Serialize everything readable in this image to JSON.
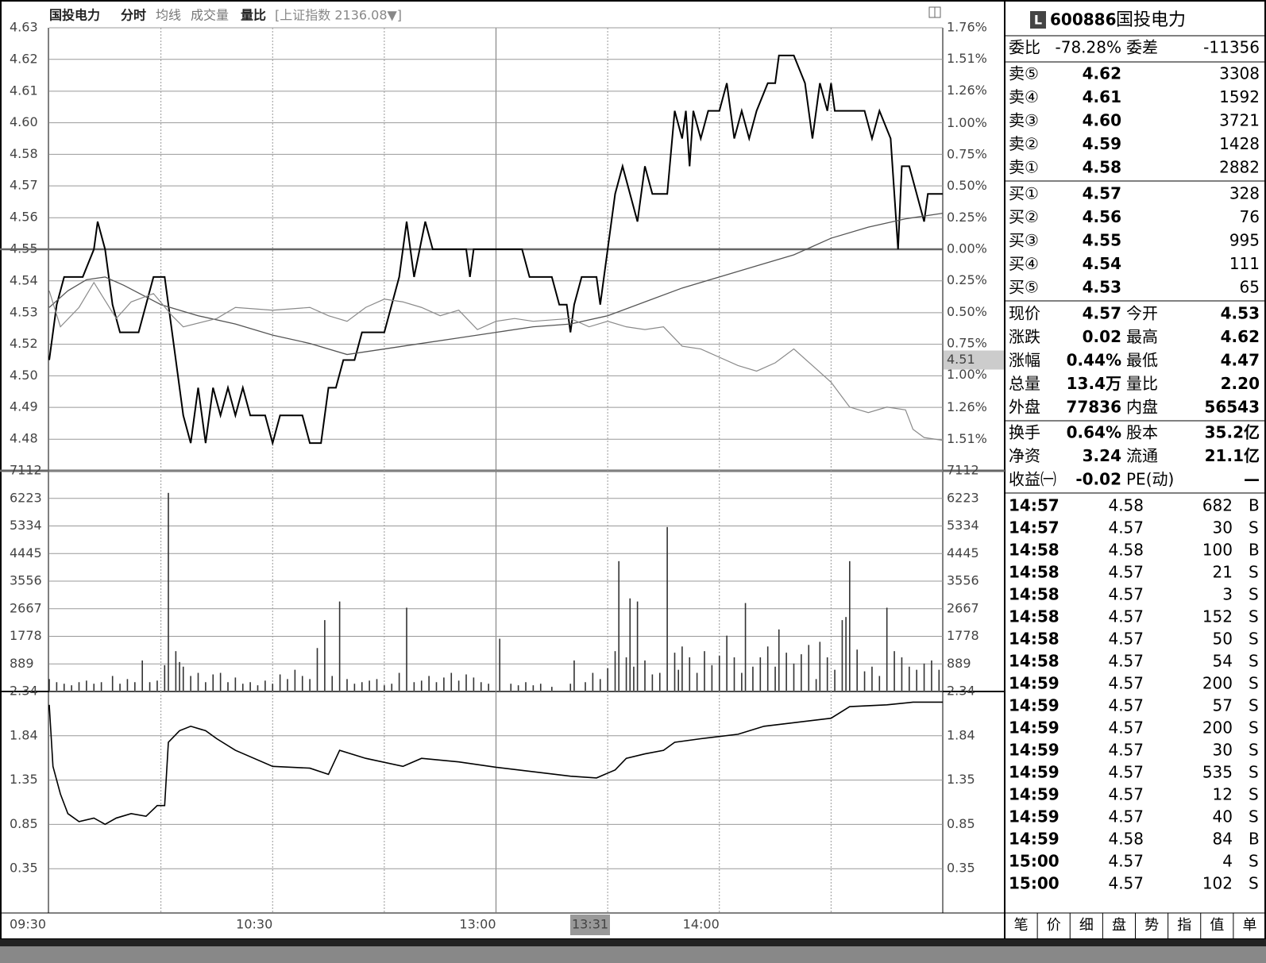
{
  "header": {
    "stock_name": "国投电力",
    "tabs": [
      "分时",
      "均线",
      "成交量",
      "量比"
    ],
    "index_info": "[上证指数 2136.08▼]"
  },
  "cursor": {
    "time": "13:31",
    "price": 4.51
  },
  "chart_data": [
    {
      "type": "line",
      "xlim": [
        0,
        240
      ],
      "ylim": [
        4.47,
        4.63
      ],
      "y2lim": [
        -1.76,
        1.76
      ],
      "yticks": [
        4.63,
        {
          "value": 4.6186,
          "label": "4.62"
        },
        {
          "value": 4.6071,
          "label": "4.61"
        },
        {
          "value": 4.5957,
          "label": "4.60"
        },
        {
          "value": 4.5843,
          "label": "4.58"
        },
        {
          "value": 4.5729,
          "label": "4.57"
        },
        {
          "value": 4.5614,
          "label": "4.56"
        },
        4.55,
        {
          "value": 4.5386,
          "label": "4.54"
        },
        {
          "value": 4.5271,
          "label": "4.53"
        },
        {
          "value": 4.5157,
          "label": "4.52"
        },
        {
          "value": 4.5043,
          "label": "4.50"
        },
        {
          "value": 4.4929,
          "label": "4.49"
        },
        {
          "value": 4.4814,
          "label": "4.48"
        }
      ],
      "y2ticks": [
        {
          "value": 1.76,
          "label": "1.76%"
        },
        {
          "value": 1.51,
          "label": "1.51%"
        },
        {
          "value": 1.26,
          "label": "1.26%"
        },
        {
          "value": 1.0,
          "label": "1.00%"
        },
        {
          "value": 0.75,
          "label": "0.75%"
        },
        {
          "value": 0.5,
          "label": "0.50%"
        },
        {
          "value": 0.25,
          "label": "0.25%"
        },
        {
          "value": 0,
          "label": "0.00%"
        },
        {
          "value": -0.25,
          "label": "0.25%"
        },
        {
          "value": -0.5,
          "label": "0.50%"
        },
        {
          "value": -0.75,
          "label": "0.75%"
        },
        {
          "value": -1.0,
          "label": "1.00%"
        },
        {
          "value": -1.26,
          "label": "1.26%"
        },
        {
          "value": -1.51,
          "label": "1.51%"
        }
      ],
      "x_grid": [
        30,
        60,
        90,
        120,
        150,
        180,
        210
      ],
      "series": [
        {
          "color": "#000000",
          "width": 2,
          "x": [
            0,
            2,
            4,
            7,
            9,
            12,
            13,
            15,
            17,
            19,
            24,
            26,
            28,
            31,
            33,
            36,
            38,
            40,
            42,
            44,
            46,
            48,
            50,
            52,
            54,
            58,
            60,
            62,
            68,
            70,
            73,
            75,
            77,
            79,
            82,
            84,
            90,
            92,
            94,
            96,
            98,
            101,
            103,
            112,
            113,
            114,
            127,
            129,
            135,
            137,
            139,
            140,
            141,
            143,
            147,
            148,
            150,
            152,
            154,
            156,
            158,
            160,
            162,
            166,
            168,
            170,
            171,
            172,
            173,
            175,
            177,
            180,
            182,
            184,
            186,
            188,
            190,
            193,
            195,
            196,
            198,
            200,
            203,
            205,
            207,
            209,
            210,
            211,
            219,
            221,
            223,
            226,
            228,
            229,
            231,
            233,
            235,
            236,
            240
          ],
          "values": [
            4.51,
            4.53,
            4.54,
            4.54,
            4.54,
            4.55,
            4.56,
            4.55,
            4.53,
            4.52,
            4.52,
            4.53,
            4.54,
            4.54,
            4.52,
            4.49,
            4.48,
            4.5,
            4.48,
            4.5,
            4.49,
            4.5,
            4.49,
            4.5,
            4.49,
            4.49,
            4.48,
            4.49,
            4.49,
            4.48,
            4.48,
            4.5,
            4.5,
            4.51,
            4.51,
            4.52,
            4.52,
            4.53,
            4.54,
            4.56,
            4.54,
            4.56,
            4.55,
            4.55,
            4.54,
            4.55,
            4.55,
            4.54,
            4.54,
            4.53,
            4.53,
            4.52,
            4.53,
            4.54,
            4.54,
            4.53,
            4.55,
            4.57,
            4.58,
            4.57,
            4.56,
            4.58,
            4.57,
            4.57,
            4.6,
            4.59,
            4.6,
            4.58,
            4.6,
            4.59,
            4.6,
            4.6,
            4.61,
            4.59,
            4.6,
            4.59,
            4.6,
            4.61,
            4.61,
            4.62,
            4.62,
            4.62,
            4.61,
            4.59,
            4.61,
            4.6,
            4.61,
            4.6,
            4.6,
            4.59,
            4.6,
            4.59,
            4.55,
            4.58,
            4.58,
            4.57,
            4.56,
            4.57,
            4.57
          ]
        },
        {
          "color": "#555555",
          "width": 1.3,
          "x": [
            0,
            5,
            10,
            15,
            20,
            30,
            40,
            50,
            60,
            70,
            80,
            90,
            100,
            110,
            120,
            130,
            140,
            150,
            160,
            170,
            180,
            190,
            200,
            210,
            220,
            230,
            240
          ],
          "values": [
            4.529,
            4.535,
            4.539,
            4.54,
            4.537,
            4.53,
            4.526,
            4.523,
            4.519,
            4.516,
            4.512,
            4.514,
            4.516,
            4.518,
            4.52,
            4.522,
            4.523,
            4.526,
            4.531,
            4.536,
            4.54,
            4.544,
            4.548,
            4.554,
            4.558,
            4.561,
            4.563
          ]
        },
        {
          "color": "#8a8a8a",
          "width": 1.2,
          "x": [
            0,
            3,
            8,
            12,
            18,
            22,
            28,
            33,
            36,
            45,
            50,
            60,
            70,
            75,
            80,
            85,
            90,
            95,
            100,
            105,
            110,
            115,
            120,
            125,
            130,
            140,
            145,
            150,
            155,
            160,
            165,
            170,
            175,
            180,
            185,
            190,
            195,
            200,
            205,
            210,
            215,
            220,
            225,
            230,
            232,
            235,
            240
          ],
          "values": [
            4.535,
            4.522,
            4.529,
            4.538,
            4.525,
            4.531,
            4.534,
            4.526,
            4.522,
            4.525,
            4.529,
            4.528,
            4.529,
            4.526,
            4.524,
            4.529,
            4.532,
            4.531,
            4.529,
            4.526,
            4.528,
            4.521,
            4.524,
            4.525,
            4.524,
            4.525,
            4.522,
            4.524,
            4.522,
            4.521,
            4.522,
            4.515,
            4.514,
            4.511,
            4.508,
            4.506,
            4.509,
            4.514,
            4.508,
            4.502,
            4.493,
            4.491,
            4.493,
            4.492,
            4.485,
            4.482,
            4.481
          ]
        }
      ]
    },
    {
      "type": "bar",
      "xlim": [
        0,
        240
      ],
      "ylim": [
        0,
        7112
      ],
      "yticks": [
        7112,
        6223,
        5334,
        4445,
        3556,
        2667,
        1778,
        889
      ],
      "color": "#333333",
      "x": [
        0,
        2,
        4,
        6,
        8,
        10,
        12,
        14,
        17,
        19,
        21,
        23,
        25,
        27,
        29,
        31,
        32,
        34,
        35,
        36,
        38,
        40,
        42,
        44,
        46,
        48,
        50,
        52,
        54,
        56,
        58,
        60,
        62,
        64,
        66,
        68,
        70,
        72,
        74,
        76,
        78,
        80,
        82,
        84,
        86,
        88,
        90,
        92,
        94,
        96,
        98,
        100,
        102,
        104,
        106,
        108,
        110,
        112,
        114,
        116,
        118,
        121,
        124,
        126,
        128,
        130,
        132,
        135,
        140,
        141,
        144,
        146,
        148,
        150,
        152,
        153,
        155,
        156,
        157,
        158,
        160,
        162,
        164,
        166,
        168,
        169,
        170,
        172,
        174,
        176,
        178,
        180,
        182,
        184,
        186,
        187,
        189,
        191,
        193,
        195,
        196,
        198,
        200,
        202,
        204,
        206,
        207,
        209,
        211,
        213,
        214,
        215,
        217,
        219,
        221,
        223,
        225,
        227,
        229,
        231,
        233,
        235,
        237,
        239
      ],
      "values": [
        400,
        300,
        250,
        200,
        300,
        350,
        250,
        300,
        500,
        250,
        400,
        300,
        1000,
        300,
        350,
        850,
        6400,
        1300,
        950,
        800,
        500,
        600,
        300,
        550,
        600,
        300,
        450,
        250,
        300,
        200,
        350,
        250,
        550,
        400,
        700,
        500,
        400,
        1400,
        2300,
        500,
        2900,
        400,
        250,
        300,
        350,
        400,
        200,
        250,
        600,
        2700,
        300,
        350,
        500,
        300,
        450,
        600,
        350,
        550,
        450,
        300,
        250,
        1700,
        250,
        200,
        300,
        200,
        250,
        150,
        250,
        1000,
        300,
        600,
        400,
        750,
        1300,
        4200,
        1100,
        3000,
        800,
        2900,
        1000,
        550,
        600,
        5300,
        1250,
        700,
        1450,
        1100,
        600,
        1300,
        850,
        1150,
        1800,
        1100,
        600,
        2850,
        800,
        1100,
        1450,
        800,
        2000,
        1250,
        900,
        1200,
        1500,
        400,
        1600,
        1100,
        700,
        2300,
        2400,
        4200,
        1350,
        650,
        800,
        500,
        2700,
        1300,
        1100,
        800,
        700,
        900,
        1000,
        700
      ]
    },
    {
      "type": "line",
      "xlim": [
        0,
        240
      ],
      "ylim": [
        -0.145,
        2.34
      ],
      "yticks": [
        2.34,
        {
          "value": 1.843,
          "label": "1.84"
        },
        {
          "value": 1.346,
          "label": "1.35"
        },
        {
          "value": 0.849,
          "label": "0.85"
        },
        {
          "value": 0.352,
          "label": "0.35"
        }
      ],
      "xticks": [
        {
          "value": 0,
          "label": "09:30"
        },
        {
          "value": 60,
          "label": "10:30"
        },
        {
          "value": 120,
          "label": "13:00"
        },
        {
          "value": 180,
          "label": "14:00"
        }
      ],
      "series": [
        {
          "color": "#000000",
          "width": 1.6,
          "x": [
            0,
            1,
            3,
            5,
            8,
            12,
            15,
            18,
            22,
            26,
            29,
            31,
            32,
            35,
            38,
            42,
            45,
            50,
            60,
            70,
            75,
            78,
            85,
            95,
            100,
            110,
            120,
            130,
            140,
            147,
            152,
            155,
            160,
            165,
            168,
            175,
            185,
            192,
            200,
            210,
            215,
            225,
            232,
            240
          ],
          "values": [
            2.19,
            1.5,
            1.19,
            0.97,
            0.88,
            0.92,
            0.85,
            0.92,
            0.97,
            0.94,
            1.06,
            1.06,
            1.77,
            1.9,
            1.95,
            1.9,
            1.81,
            1.68,
            1.5,
            1.48,
            1.41,
            1.68,
            1.59,
            1.5,
            1.59,
            1.55,
            1.49,
            1.44,
            1.39,
            1.37,
            1.46,
            1.59,
            1.64,
            1.68,
            1.77,
            1.81,
            1.86,
            1.95,
            1.99,
            2.04,
            2.17,
            2.19,
            2.22,
            2.22
          ]
        }
      ]
    }
  ],
  "quote": {
    "badge": "L",
    "code": "600886",
    "name": "国投电力",
    "commission": [
      "委比",
      "-78.28%",
      "委差",
      "-11356"
    ],
    "asks": [
      [
        "卖⑤",
        "4.62",
        "3308"
      ],
      [
        "卖④",
        "4.61",
        "1592"
      ],
      [
        "卖③",
        "4.60",
        "3721"
      ],
      [
        "卖②",
        "4.59",
        "1428"
      ],
      [
        "卖①",
        "4.58",
        "2882"
      ]
    ],
    "bids": [
      [
        "买①",
        "4.57",
        "328"
      ],
      [
        "买②",
        "4.56",
        "76"
      ],
      [
        "买③",
        "4.55",
        "995"
      ],
      [
        "买④",
        "4.54",
        "111"
      ],
      [
        "买⑤",
        "4.53",
        "65"
      ]
    ],
    "stats": [
      [
        "现价",
        "4.57",
        "今开",
        "4.53"
      ],
      [
        "涨跌",
        "0.02",
        "最高",
        "4.62"
      ],
      [
        "涨幅",
        "0.44%",
        "最低",
        "4.47"
      ],
      [
        "总量",
        "13.4万",
        "量比",
        "2.20"
      ],
      [
        "外盘",
        "77836",
        "内盘",
        "56543"
      ]
    ],
    "fundamentals": [
      [
        "换手",
        "0.64%",
        "股本",
        "35.2亿"
      ],
      [
        "净资",
        "3.24",
        "流通",
        "21.1亿"
      ],
      [
        "收益㈠",
        "-0.02",
        "PE(动)",
        "—"
      ]
    ],
    "trades": [
      [
        "14:57",
        "4.58",
        "682",
        "B"
      ],
      [
        "14:57",
        "4.57",
        "30",
        "S"
      ],
      [
        "14:58",
        "4.58",
        "100",
        "B"
      ],
      [
        "14:58",
        "4.57",
        "21",
        "S"
      ],
      [
        "14:58",
        "4.57",
        "3",
        "S"
      ],
      [
        "14:58",
        "4.57",
        "152",
        "S"
      ],
      [
        "14:58",
        "4.57",
        "50",
        "S"
      ],
      [
        "14:58",
        "4.57",
        "54",
        "S"
      ],
      [
        "14:59",
        "4.57",
        "200",
        "S"
      ],
      [
        "14:59",
        "4.57",
        "57",
        "S"
      ],
      [
        "14:59",
        "4.57",
        "200",
        "S"
      ],
      [
        "14:59",
        "4.57",
        "30",
        "S"
      ],
      [
        "14:59",
        "4.57",
        "535",
        "S"
      ],
      [
        "14:59",
        "4.57",
        "12",
        "S"
      ],
      [
        "14:59",
        "4.57",
        "40",
        "S"
      ],
      [
        "14:59",
        "4.58",
        "84",
        "B"
      ],
      [
        "15:00",
        "4.57",
        "4",
        "S"
      ],
      [
        "15:00",
        "4.57",
        "102",
        "S"
      ]
    ],
    "tabs": [
      "笔",
      "价",
      "细",
      "盘",
      "势",
      "指",
      "值",
      "单"
    ]
  }
}
